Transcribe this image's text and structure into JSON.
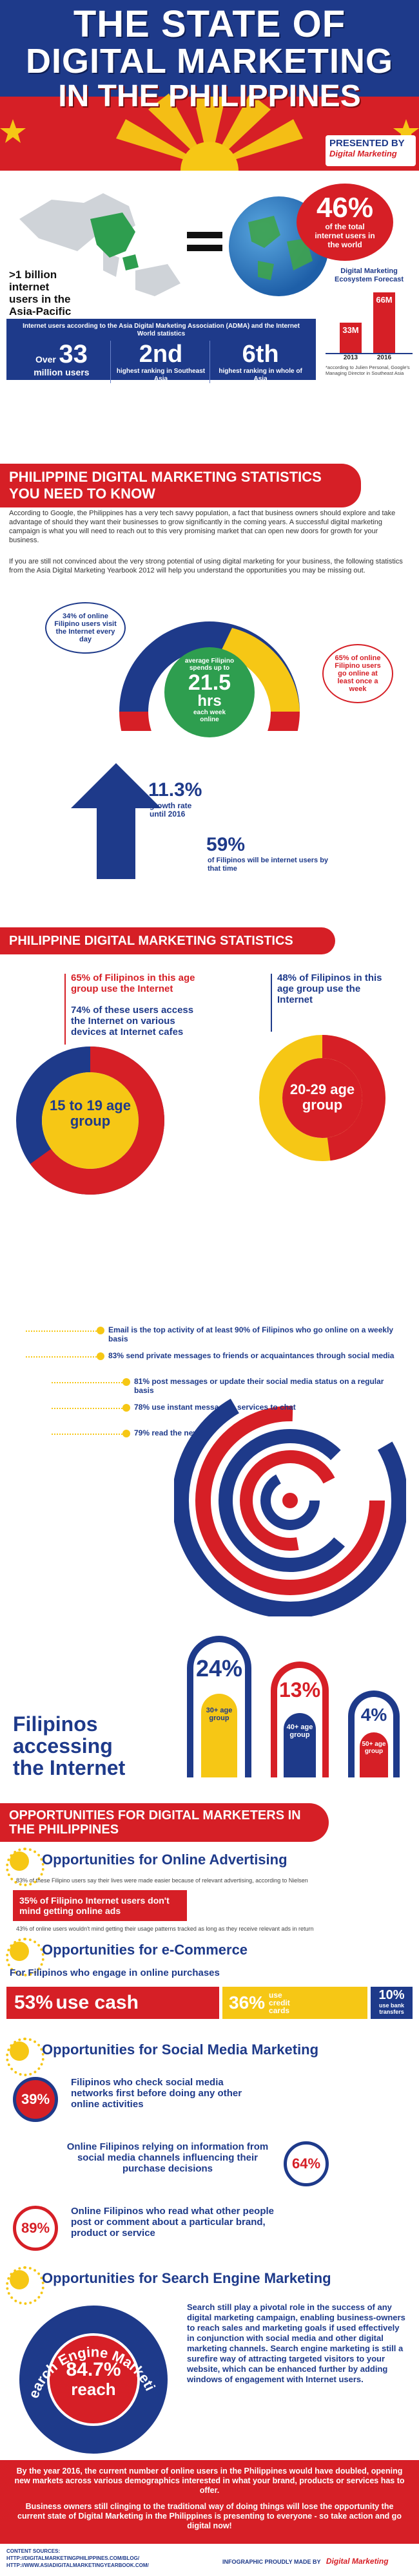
{
  "header": {
    "title_line1": "THE STATE OF",
    "title_line2": "DIGITAL MARKETING",
    "title_line3": "IN THE PHILIPPINES",
    "presented_by": "PRESENTED BY",
    "presenter": "Digital Marketing"
  },
  "intro": {
    "big_pct": "46%",
    "big_pct_caption": "of the total internet users in the world",
    "asia_text": ">1 billion internet users in the Asia-Pacific region",
    "forecast_title": "Digital Marketing Ecosystem Forecast",
    "forecast_bars": [
      {
        "year": "2013",
        "value": "33M",
        "v": 33
      },
      {
        "year": "2016",
        "value": "66M",
        "v": 66
      }
    ],
    "forecast_note": "*according to Julien Personal, Google's Managing Director in Southeast Asia",
    "stats_header": "Internet users according to the Asia Digital Marketing Association (ADMA) and the Internet World statistics",
    "stat1_big": "33",
    "stat1_prefix": "Over",
    "stat1_caption": "million users",
    "stat2_big": "2nd",
    "stat2_caption": "highest ranking in Southeast Asia",
    "stat3_big": "6th",
    "stat3_caption": "highest ranking in whole of Asia"
  },
  "stats_section": {
    "title": "PHILIPPINE DIGITAL MARKETING STATISTICS YOU NEED TO KNOW",
    "para1": "According to Google, the Philippines has a very tech savvy population, a fact that business owners should explore and take advantage of should they want their businesses to grow significantly in the coming years. A successful digital marketing campaign is what you will need to reach out to this very promising market that can open new doors for growth for your business.",
    "para2": "If you are still not convinced about the very strong potential of using digital marketing for your business, the following statistics from the Asia Digital Marketing Yearbook 2012 will help you understand the opportunities you may be missing out.",
    "daily_pct": "34% of online Filipino users visit the Internet every day",
    "weekly_pct": "65% of online Filipino users go online at least once a week",
    "avg_label": "average Filipino spends up to",
    "avg_hours": "21.5",
    "avg_unit": "hrs",
    "avg_caption": "each week online",
    "growth_pct": "11.3%",
    "growth_caption": "growth rate until 2016",
    "users_pct": "59%",
    "users_caption": "of Filipinos will be internet users by that time"
  },
  "age_section": {
    "title": "PHILIPPINE DIGITAL MARKETING STATISTICS",
    "left_point1": "65% of Filipinos in this age group use the Internet",
    "left_point2": "74% of these users access the Internet on various devices at Internet cafes",
    "left_age": "15 to 19 age group",
    "right_point1": "48% of Filipinos in this age group use the Internet",
    "right_age": "20-29 age group"
  },
  "activities": [
    "Email is the top activity of at least 90% of Filipinos who go online on a weekly basis",
    "83% send private messages to friends or acquaintances through social media",
    "81% post messages or update their social media status on a regular basis",
    "78% use instant messaging services to chat",
    "79% read the news"
  ],
  "accessing": {
    "title_line1": "Filipinos",
    "title_line2": "accessing",
    "title_line3": "the Internet",
    "groups": [
      {
        "pct": "24%",
        "label": "30+ age group"
      },
      {
        "pct": "13%",
        "label": "40+ age group"
      },
      {
        "pct": "4%",
        "label": "50+ age group"
      }
    ]
  },
  "opportunities": {
    "title": "OPPORTUNITIES FOR DIGITAL MARKETERS IN THE PHILIPPINES",
    "advertising_title": "Opportunities for Online Advertising",
    "adv_note1": "83% of these Filipino users say their lives were made easier because of relevant advertising, according to Nielsen",
    "adv_box": "35% of Filipino Internet users don't mind getting online ads",
    "adv_note2": "43% of online users wouldn't mind getting their usage patterns tracked as long as they receive relevant ads in return",
    "ecommerce_title": "Opportunities for e-Commerce",
    "ecommerce_sub": "For Filipinos who engage in online purchases",
    "pay1_pct": "53%",
    "pay1_label": "use cash",
    "pay2_pct": "36%",
    "pay2_label": "use credit cards",
    "pay3_pct": "10%",
    "pay3_label": "use bank transfers",
    "social_title": "Opportunities for Social Media Marketing",
    "social": [
      {
        "pct": "39%",
        "text": "Filipinos who check social media networks first before doing any other online activities"
      },
      {
        "pct": "64%",
        "text": "Online Filipinos relying on information from social media channels influencing their purchase decisions"
      },
      {
        "pct": "89%",
        "text": "Online Filipinos who read what other people post or comment about a particular brand, product or service"
      }
    ],
    "sem_title": "Opportunities for Search Engine Marketing",
    "sem_pct": "84.7%",
    "sem_reach": "reach",
    "sem_ring": "Search Engine Marketing",
    "sem_text": "Search still play a pivotal role in the success of any digital marketing campaign, enabling business-owners to reach sales and marketing goals if used effectively in conjunction with social media and other digital marketing channels. Search engine marketing is still a surefire way of attracting targeted visitors to your website, which can be enhanced further by adding windows of engagement with Internet users."
  },
  "footer": {
    "para1": "By the year 2016, the current number of online users in the Philippines would have doubled, opening new markets across various demographics interested in what your brand, products or services has to offer.",
    "para2": "Business owners still clinging to the traditional way of doing things will lose the opportunity the current state of Digital Marketing in the Philippines is presenting to everyone - so take action and go digital now!",
    "sources_label": "CONTENT SOURCES:",
    "source1": "HTTP://DIGITALMARKETINGPHILIPPINES.COM/BLOG/",
    "source2": "HTTP://WWW.ASIADIGITALMARKETINGYEARBOOK.COM/",
    "made_by": "INFOGRAPHIC PROUDLY MADE BY",
    "brand": "Digital Marketing"
  },
  "colors": {
    "red": "#d61f26",
    "navy": "#1e3a8a",
    "yellow": "#f6c715",
    "dark": "#222222"
  }
}
